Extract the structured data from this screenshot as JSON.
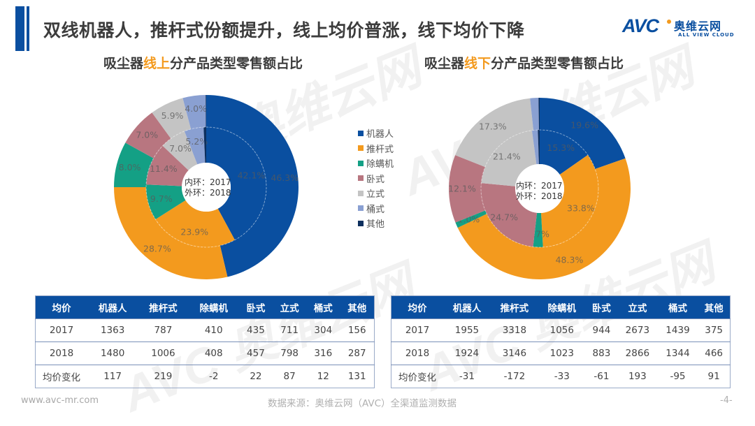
{
  "header": {
    "title": "双线机器人，推杆式份额提升，线上均价普涨，线下均价下降",
    "logo": {
      "mark": "AVC",
      "cn": "奥维云网",
      "en": "ALL VIEW CLOUD"
    }
  },
  "colors": {
    "brand_blue": "#0a4fa0",
    "highlight_orange": "#f39a1e",
    "categories": [
      "#0a4fa0",
      "#f39a1e",
      "#14a085",
      "#b87680",
      "#c4c4c4",
      "#8aa0d2",
      "#0d2f5e"
    ]
  },
  "legend": {
    "items": [
      "机器人",
      "推杆式",
      "除螨机",
      "卧式",
      "立式",
      "桶式",
      "其他"
    ]
  },
  "charts": {
    "left": {
      "title_pre": "吸尘器",
      "title_hl": "线上",
      "title_post": "分产品类型零售额占比",
      "center_line1": "内环：2017",
      "center_line2": "外环：2018"
    },
    "right": {
      "title_pre": "吸尘器",
      "title_hl": "线下",
      "title_post": "分产品类型零售额占比",
      "center_line1": "内环：2017",
      "center_line2": "外环：2018"
    }
  },
  "chart_data": [
    {
      "type": "pie",
      "subtype": "double-ring donut",
      "title": "吸尘器线上分产品类型零售额占比",
      "categories": [
        "机器人",
        "推杆式",
        "除螨机",
        "卧式",
        "立式",
        "桶式",
        "其他"
      ],
      "series": [
        {
          "name": "2017 (内环)",
          "values": [
            42.1,
            23.9,
            9.7,
            11.4,
            7.0,
            5.2,
            0.7
          ],
          "labels": [
            "42.1%",
            "23.9%",
            "9.7%",
            "11.4%",
            "7.0%",
            "5.2%",
            ""
          ]
        },
        {
          "name": "2018 (外环)",
          "values": [
            46.3,
            28.7,
            8.0,
            7.0,
            5.9,
            4.0,
            0.1
          ],
          "labels": [
            "46.3%",
            "28.7%",
            "8.0%",
            "7.0%",
            "5.9%",
            "4.0%",
            ""
          ]
        }
      ],
      "legend_position": "right"
    },
    {
      "type": "pie",
      "subtype": "double-ring donut",
      "title": "吸尘器线下分产品类型零售额占比",
      "categories": [
        "机器人",
        "推杆式",
        "除螨机",
        "卧式",
        "立式",
        "桶式",
        "其他"
      ],
      "series": [
        {
          "name": "2017 (内环)",
          "values": [
            15.3,
            33.8,
            2.7,
            24.7,
            21.4,
            1.6,
            0.5
          ],
          "labels": [
            "15.3%",
            "33.8%",
            "2.7%",
            "24.7%",
            "21.4%",
            "",
            ""
          ]
        },
        {
          "name": "2018 (外环)",
          "values": [
            19.6,
            48.3,
            1.0,
            12.1,
            17.3,
            1.5,
            0.2
          ],
          "labels": [
            "19.6%",
            "48.3%",
            "1.0%",
            "12.1%",
            "17.3%",
            "",
            ""
          ]
        }
      ],
      "legend_position": "left"
    }
  ],
  "tables": {
    "left": {
      "headers": [
        "均价",
        "机器人",
        "推杆式",
        "除螨机",
        "卧式",
        "立式",
        "桶式",
        "其他"
      ],
      "rows": [
        [
          "2017",
          "1363",
          "787",
          "410",
          "435",
          "711",
          "304",
          "156"
        ],
        [
          "2018",
          "1480",
          "1006",
          "408",
          "457",
          "798",
          "316",
          "287"
        ],
        [
          "均价变化",
          "117",
          "219",
          "-2",
          "22",
          "87",
          "12",
          "131"
        ]
      ]
    },
    "right": {
      "headers": [
        "均价",
        "机器人",
        "推杆式",
        "除螨机",
        "卧式",
        "立式",
        "桶式",
        "其他"
      ],
      "rows": [
        [
          "2017",
          "1955",
          "3318",
          "1056",
          "944",
          "2673",
          "1439",
          "375"
        ],
        [
          "2018",
          "1924",
          "3146",
          "1023",
          "883",
          "2866",
          "1344",
          "466"
        ],
        [
          "均价变化",
          "-31",
          "-172",
          "-33",
          "-61",
          "193",
          "-95",
          "91"
        ]
      ]
    }
  },
  "footer": {
    "url": "www.avc-mr.com",
    "source": "数据来源：奥维云网（AVC）全渠道监测数据",
    "page": "-4-"
  },
  "watermark": {
    "text": "AVC 奥维云网",
    "sub": "ALL VIEW CLOUD"
  }
}
